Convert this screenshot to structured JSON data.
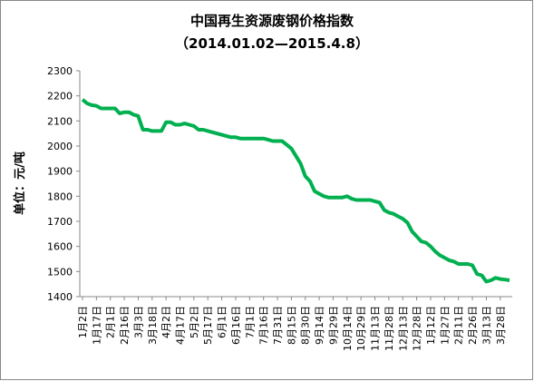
{
  "chart_data": {
    "type": "line",
    "title": "中国再生资源废钢价格指数",
    "subtitle": "（2014.01.02—2015.4.8）",
    "y_label": "单位：元/吨",
    "categories": [
      "1月2日",
      null,
      null,
      "1月17日",
      null,
      null,
      "2月1日",
      null,
      null,
      "2月16日",
      null,
      null,
      "3月3日",
      null,
      null,
      "3月18日",
      null,
      null,
      "4月2日",
      null,
      null,
      "4月17日",
      null,
      null,
      "5月2日",
      null,
      null,
      "5月17日",
      null,
      null,
      "6月1日",
      null,
      null,
      "6月16日",
      null,
      null,
      "7月1日",
      null,
      null,
      "7月16日",
      null,
      null,
      "7月31日",
      null,
      null,
      "8月15日",
      null,
      null,
      "8月30日",
      null,
      null,
      "9月14日",
      null,
      null,
      "9月29日",
      null,
      null,
      "10月14日",
      null,
      null,
      "10月29日",
      null,
      null,
      "11月13日",
      null,
      null,
      "11月28日",
      null,
      null,
      "12月13日",
      null,
      null,
      "12月28日",
      null,
      null,
      "1月12日",
      null,
      null,
      "1月27日",
      null,
      null,
      "2月11日",
      null,
      null,
      "2月26日",
      null,
      null,
      "3月13日",
      null,
      null,
      "3月28日",
      null,
      null
    ],
    "series": [
      {
        "color": "#00b050",
        "values": [
          2185,
          2170,
          2163,
          2160,
          2150,
          2150,
          2150,
          2150,
          2130,
          2135,
          2135,
          2125,
          2120,
          2065,
          2065,
          2060,
          2060,
          2060,
          2095,
          2095,
          2085,
          2085,
          2090,
          2085,
          2080,
          2065,
          2065,
          2060,
          2055,
          2050,
          2045,
          2040,
          2035,
          2035,
          2030,
          2030,
          2030,
          2030,
          2030,
          2030,
          2025,
          2020,
          2020,
          2020,
          2005,
          1990,
          1960,
          1930,
          1880,
          1860,
          1820,
          1810,
          1800,
          1795,
          1795,
          1795,
          1795,
          1800,
          1790,
          1785,
          1785,
          1785,
          1785,
          1780,
          1775,
          1745,
          1735,
          1730,
          1720,
          1710,
          1695,
          1660,
          1640,
          1620,
          1615,
          1600,
          1580,
          1565,
          1555,
          1545,
          1540,
          1530,
          1530,
          1530,
          1525,
          1490,
          1485,
          1460,
          1465,
          1475,
          1470,
          1468,
          1465
        ]
      }
    ],
    "ylim": [
      1400,
      2300
    ],
    "yticks": [
      1400,
      1500,
      1600,
      1700,
      1800,
      1900,
      2000,
      2100,
      2200,
      2300
    ],
    "grid": false
  }
}
